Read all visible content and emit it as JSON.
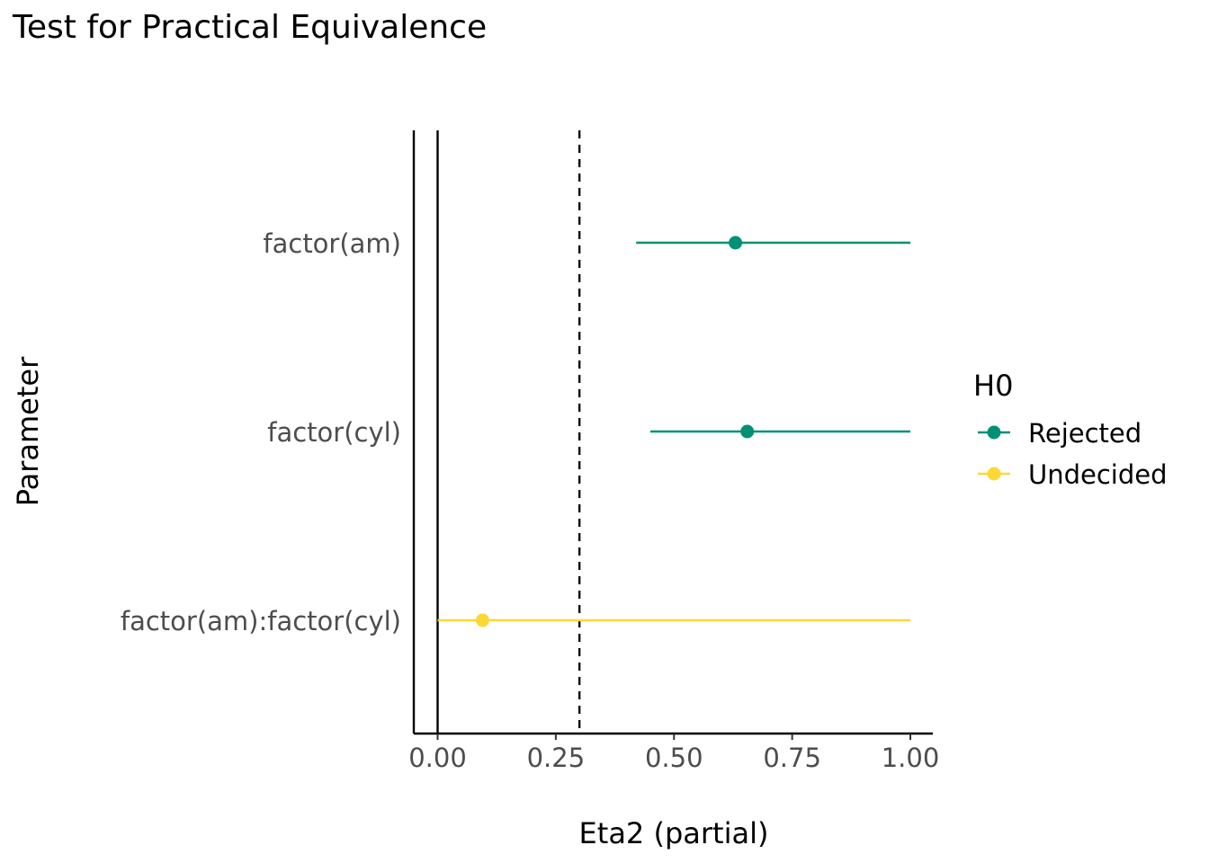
{
  "chart_data": {
    "type": "scatter",
    "title": "Test for Practical Equivalence",
    "xlabel": "Eta2 (partial)",
    "ylabel": "Parameter",
    "xlim": [
      -0.05,
      1.05
    ],
    "x_ticks": [
      "0.00",
      "0.25",
      "0.50",
      "0.75",
      "1.00"
    ],
    "x_tick_values": [
      0,
      0.25,
      0.5,
      0.75,
      1.0
    ],
    "categories": [
      "factor(am)",
      "factor(cyl)",
      "factor(am):factor(cyl)"
    ],
    "points": [
      {
        "parameter": "factor(am)",
        "estimate": 0.63,
        "ci_low": 0.42,
        "ci_high": 1.0,
        "h0": "Rejected"
      },
      {
        "parameter": "factor(cyl)",
        "estimate": 0.655,
        "ci_low": 0.45,
        "ci_high": 1.0,
        "h0": "Rejected"
      },
      {
        "parameter": "factor(am):factor(cyl)",
        "estimate": 0.095,
        "ci_low": 0.0,
        "ci_high": 1.0,
        "h0": "Undecided"
      }
    ],
    "reference_lines": [
      {
        "value": 0,
        "style": "solid"
      },
      {
        "value": 0.3,
        "style": "dashed"
      }
    ],
    "legend": {
      "title": "H0",
      "placement": "right",
      "items": [
        {
          "label": "Rejected",
          "color": "#009175"
        },
        {
          "label": "Undecided",
          "color": "#FDD835"
        }
      ]
    },
    "grid": false
  }
}
